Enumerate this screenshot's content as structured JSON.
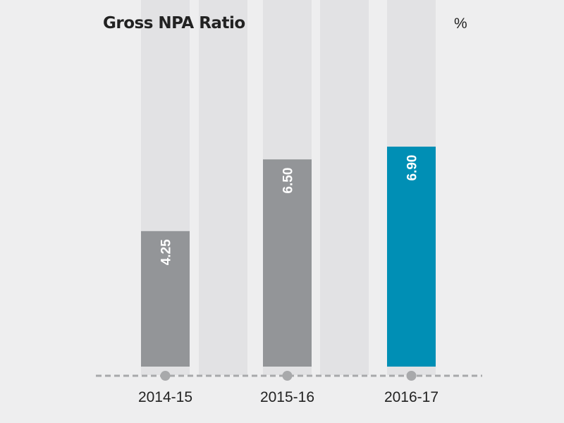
{
  "chart_data": {
    "type": "bar",
    "title": "Gross NPA Ratio",
    "unit": "%",
    "categories": [
      "2014-15",
      "2015-16",
      "2016-17"
    ],
    "values": [
      4.25,
      6.5,
      6.9
    ],
    "value_labels": [
      "4.25",
      "6.50",
      "6.90"
    ],
    "ylim": [
      0,
      11.5
    ],
    "legend": "none",
    "grid": false,
    "colors": {
      "bar": "#939598",
      "highlight_bar": "#008fb5",
      "track": "#e2e2e4",
      "background": "#eeeeef",
      "baseline": "#a8a9ab",
      "marker": "#a8a9ab",
      "label_text": "#ffffff"
    },
    "highlight_index": 2
  }
}
